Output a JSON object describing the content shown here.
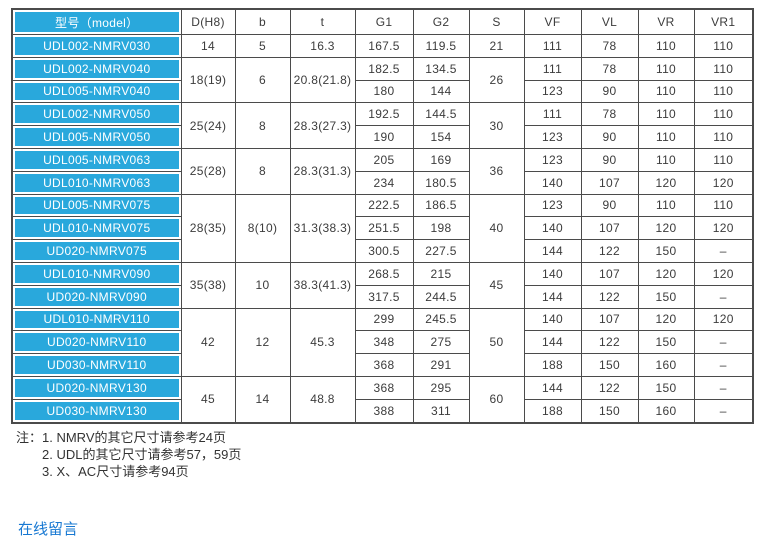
{
  "colors": {
    "table_blue": "#29A8DC",
    "link_blue": "#1778D2",
    "border_gray": "#4B4B4B"
  },
  "table": {
    "headers": [
      "型号（model）",
      "D(H8)",
      "b",
      "t",
      "G1",
      "G2",
      "S",
      "VF",
      "VL",
      "VR",
      "VR1"
    ],
    "groups": [
      {
        "d": "14",
        "b": "5",
        "t": "16.3",
        "s": "21",
        "rows": [
          {
            "model": "UDL002-NMRV030",
            "g1": "167.5",
            "g2": "119.5",
            "vf": "111",
            "vl": "78",
            "vr": "110",
            "vr1": "110"
          }
        ]
      },
      {
        "d": "18(19)",
        "b": "6",
        "t": "20.8(21.8)",
        "s": "26",
        "rows": [
          {
            "model": "UDL002-NMRV040",
            "g1": "182.5",
            "g2": "134.5",
            "vf": "111",
            "vl": "78",
            "vr": "110",
            "vr1": "110"
          },
          {
            "model": "UDL005-NMRV040",
            "g1": "180",
            "g2": "144",
            "vf": "123",
            "vl": "90",
            "vr": "110",
            "vr1": "110"
          }
        ]
      },
      {
        "d": "25(24)",
        "b": "8",
        "t": "28.3(27.3)",
        "s": "30",
        "rows": [
          {
            "model": "UDL002-NMRV050",
            "g1": "192.5",
            "g2": "144.5",
            "vf": "111",
            "vl": "78",
            "vr": "110",
            "vr1": "110"
          },
          {
            "model": "UDL005-NMRV050",
            "g1": "190",
            "g2": "154",
            "vf": "123",
            "vl": "90",
            "vr": "110",
            "vr1": "110"
          }
        ]
      },
      {
        "d": "25(28)",
        "b": "8",
        "t": "28.3(31.3)",
        "s": "36",
        "rows": [
          {
            "model": "UDL005-NMRV063",
            "g1": "205",
            "g2": "169",
            "vf": "123",
            "vl": "90",
            "vr": "110",
            "vr1": "110"
          },
          {
            "model": "UDL010-NMRV063",
            "g1": "234",
            "g2": "180.5",
            "vf": "140",
            "vl": "107",
            "vr": "120",
            "vr1": "120"
          }
        ]
      },
      {
        "d": "28(35)",
        "b": "8(10)",
        "t": "31.3(38.3)",
        "s": "40",
        "rows": [
          {
            "model": "UDL005-NMRV075",
            "g1": "222.5",
            "g2": "186.5",
            "vf": "123",
            "vl": "90",
            "vr": "110",
            "vr1": "110"
          },
          {
            "model": "UDL010-NMRV075",
            "g1": "251.5",
            "g2": "198",
            "vf": "140",
            "vl": "107",
            "vr": "120",
            "vr1": "120"
          },
          {
            "model": "UD020-NMRV075",
            "g1": "300.5",
            "g2": "227.5",
            "vf": "144",
            "vl": "122",
            "vr": "150",
            "vr1": "–"
          }
        ]
      },
      {
        "d": "35(38)",
        "b": "10",
        "t": "38.3(41.3)",
        "s": "45",
        "rows": [
          {
            "model": "UDL010-NMRV090",
            "g1": "268.5",
            "g2": "215",
            "vf": "140",
            "vl": "107",
            "vr": "120",
            "vr1": "120"
          },
          {
            "model": "UD020-NMRV090",
            "g1": "317.5",
            "g2": "244.5",
            "vf": "144",
            "vl": "122",
            "vr": "150",
            "vr1": "–"
          }
        ]
      },
      {
        "d": "42",
        "b": "12",
        "t": "45.3",
        "s": "50",
        "rows": [
          {
            "model": "UDL010-NMRV110",
            "g1": "299",
            "g2": "245.5",
            "vf": "140",
            "vl": "107",
            "vr": "120",
            "vr1": "120"
          },
          {
            "model": "UD020-NMRV110",
            "g1": "348",
            "g2": "275",
            "vf": "144",
            "vl": "122",
            "vr": "150",
            "vr1": "–"
          },
          {
            "model": "UD030-NMRV110",
            "g1": "368",
            "g2": "291",
            "vf": "188",
            "vl": "150",
            "vr": "160",
            "vr1": "–"
          }
        ]
      },
      {
        "d": "45",
        "b": "14",
        "t": "48.8",
        "s": "60",
        "rows": [
          {
            "model": "UD020-NMRV130",
            "g1": "368",
            "g2": "295",
            "vf": "144",
            "vl": "122",
            "vr": "150",
            "vr1": "–"
          },
          {
            "model": "UD030-NMRV130",
            "g1": "388",
            "g2": "311",
            "vf": "188",
            "vl": "150",
            "vr": "160",
            "vr1": "–"
          }
        ]
      }
    ]
  },
  "notes": {
    "label": "注：",
    "items": [
      "1. NMRV的其它尺寸请参考24页",
      "2. UDL的其它尺寸请参考57，59页",
      "3. X、AC尺寸请参考94页"
    ]
  },
  "footer": {
    "link_label": "在线留言"
  }
}
